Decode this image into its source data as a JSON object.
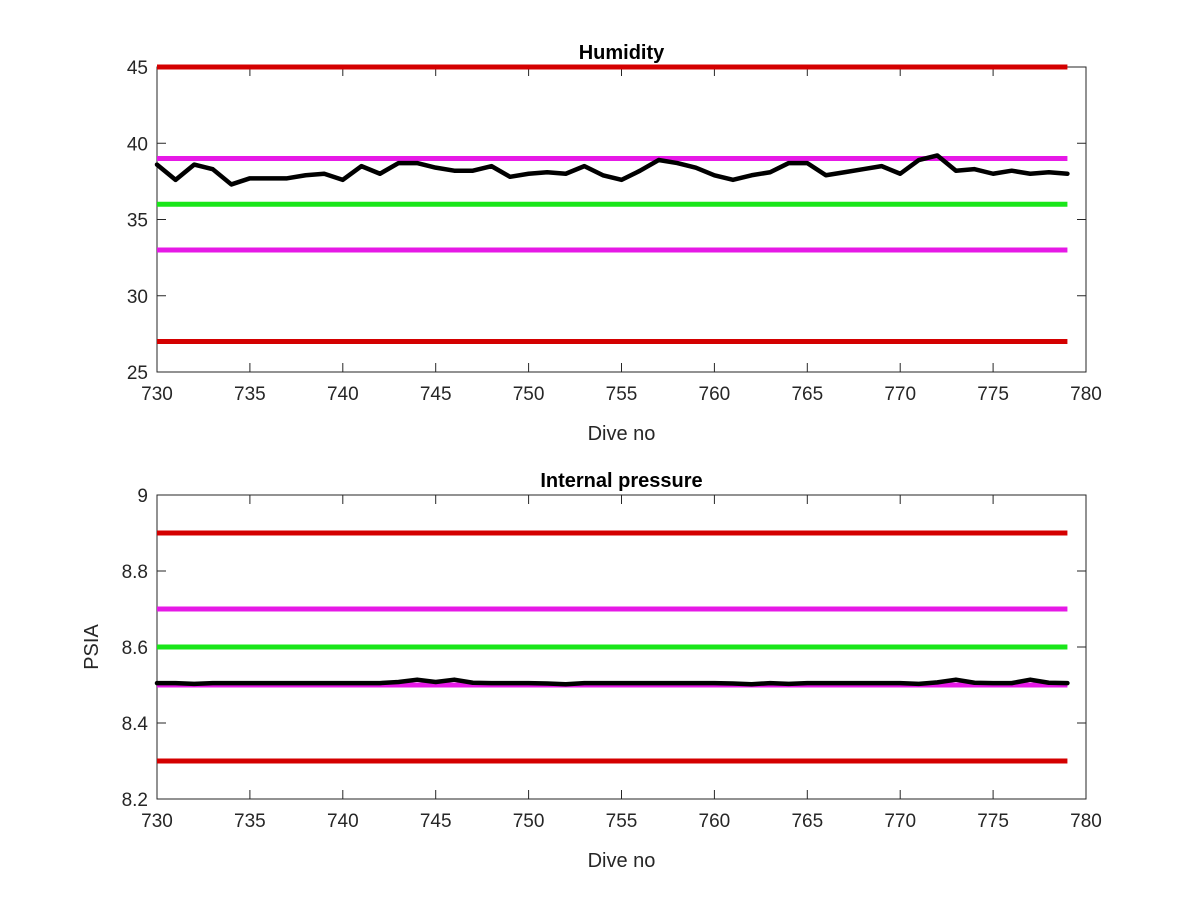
{
  "chart_data": [
    {
      "type": "line",
      "title": "Humidity",
      "xlabel": "Dive no",
      "ylabel": "",
      "xlim": [
        730,
        780
      ],
      "ylim": [
        25,
        45
      ],
      "xticks": [
        730,
        735,
        740,
        745,
        750,
        755,
        760,
        765,
        770,
        775,
        780
      ],
      "yticks": [
        25,
        30,
        35,
        40,
        45
      ],
      "grid": false,
      "reference_lines": [
        {
          "y": 45,
          "color": "#d40000"
        },
        {
          "y": 39,
          "color": "#e619e6"
        },
        {
          "y": 36,
          "color": "#19e619"
        },
        {
          "y": 33,
          "color": "#e619e6"
        },
        {
          "y": 27,
          "color": "#d40000"
        }
      ],
      "series": [
        {
          "color": "#000000",
          "x": [
            730,
            731,
            732,
            733,
            734,
            735,
            736,
            737,
            738,
            739,
            740,
            741,
            742,
            743,
            744,
            745,
            746,
            747,
            748,
            749,
            750,
            751,
            752,
            753,
            754,
            755,
            756,
            757,
            758,
            759,
            760,
            761,
            762,
            763,
            764,
            765,
            766,
            767,
            768,
            769,
            770,
            771,
            772,
            773,
            774,
            775,
            776,
            777,
            778,
            779
          ],
          "y": [
            38.6,
            37.6,
            38.6,
            38.3,
            37.3,
            37.7,
            37.7,
            37.7,
            37.9,
            38.0,
            37.6,
            38.5,
            38.0,
            38.7,
            38.7,
            38.4,
            38.2,
            38.2,
            38.5,
            37.8,
            38.0,
            38.1,
            38.0,
            38.5,
            37.9,
            37.6,
            38.2,
            38.9,
            38.7,
            38.4,
            37.9,
            37.6,
            37.9,
            38.1,
            38.7,
            38.7,
            37.9,
            38.1,
            38.3,
            38.5,
            38.0,
            38.9,
            39.2,
            38.2,
            38.3,
            38.0,
            38.2,
            38.0,
            38.1,
            38.0
          ]
        }
      ]
    },
    {
      "type": "line",
      "title": "Internal pressure",
      "xlabel": "Dive no",
      "ylabel": "PSIA",
      "xlim": [
        730,
        780
      ],
      "ylim": [
        8.2,
        9
      ],
      "xticks": [
        730,
        735,
        740,
        745,
        750,
        755,
        760,
        765,
        770,
        775,
        780
      ],
      "yticks": [
        8.2,
        8.4,
        8.6,
        8.8,
        9
      ],
      "grid": false,
      "reference_lines": [
        {
          "y": 8.9,
          "color": "#d40000"
        },
        {
          "y": 8.7,
          "color": "#e619e6"
        },
        {
          "y": 8.6,
          "color": "#19e619"
        },
        {
          "y": 8.5,
          "color": "#e619e6"
        },
        {
          "y": 8.3,
          "color": "#d40000"
        }
      ],
      "series": [
        {
          "color": "#000000",
          "x": [
            730,
            731,
            732,
            733,
            734,
            735,
            736,
            737,
            738,
            739,
            740,
            741,
            742,
            743,
            744,
            745,
            746,
            747,
            748,
            749,
            750,
            751,
            752,
            753,
            754,
            755,
            756,
            757,
            758,
            759,
            760,
            761,
            762,
            763,
            764,
            765,
            766,
            767,
            768,
            769,
            770,
            771,
            772,
            773,
            774,
            775,
            776,
            777,
            778,
            779
          ],
          "y": [
            8.505,
            8.505,
            8.503,
            8.505,
            8.505,
            8.505,
            8.505,
            8.505,
            8.505,
            8.505,
            8.505,
            8.505,
            8.505,
            8.508,
            8.514,
            8.508,
            8.514,
            8.506,
            8.505,
            8.505,
            8.505,
            8.504,
            8.502,
            8.505,
            8.505,
            8.505,
            8.505,
            8.505,
            8.505,
            8.505,
            8.505,
            8.504,
            8.502,
            8.505,
            8.503,
            8.505,
            8.505,
            8.505,
            8.505,
            8.505,
            8.505,
            8.503,
            8.507,
            8.514,
            8.506,
            8.505,
            8.505,
            8.514,
            8.506,
            8.505
          ]
        }
      ]
    }
  ]
}
